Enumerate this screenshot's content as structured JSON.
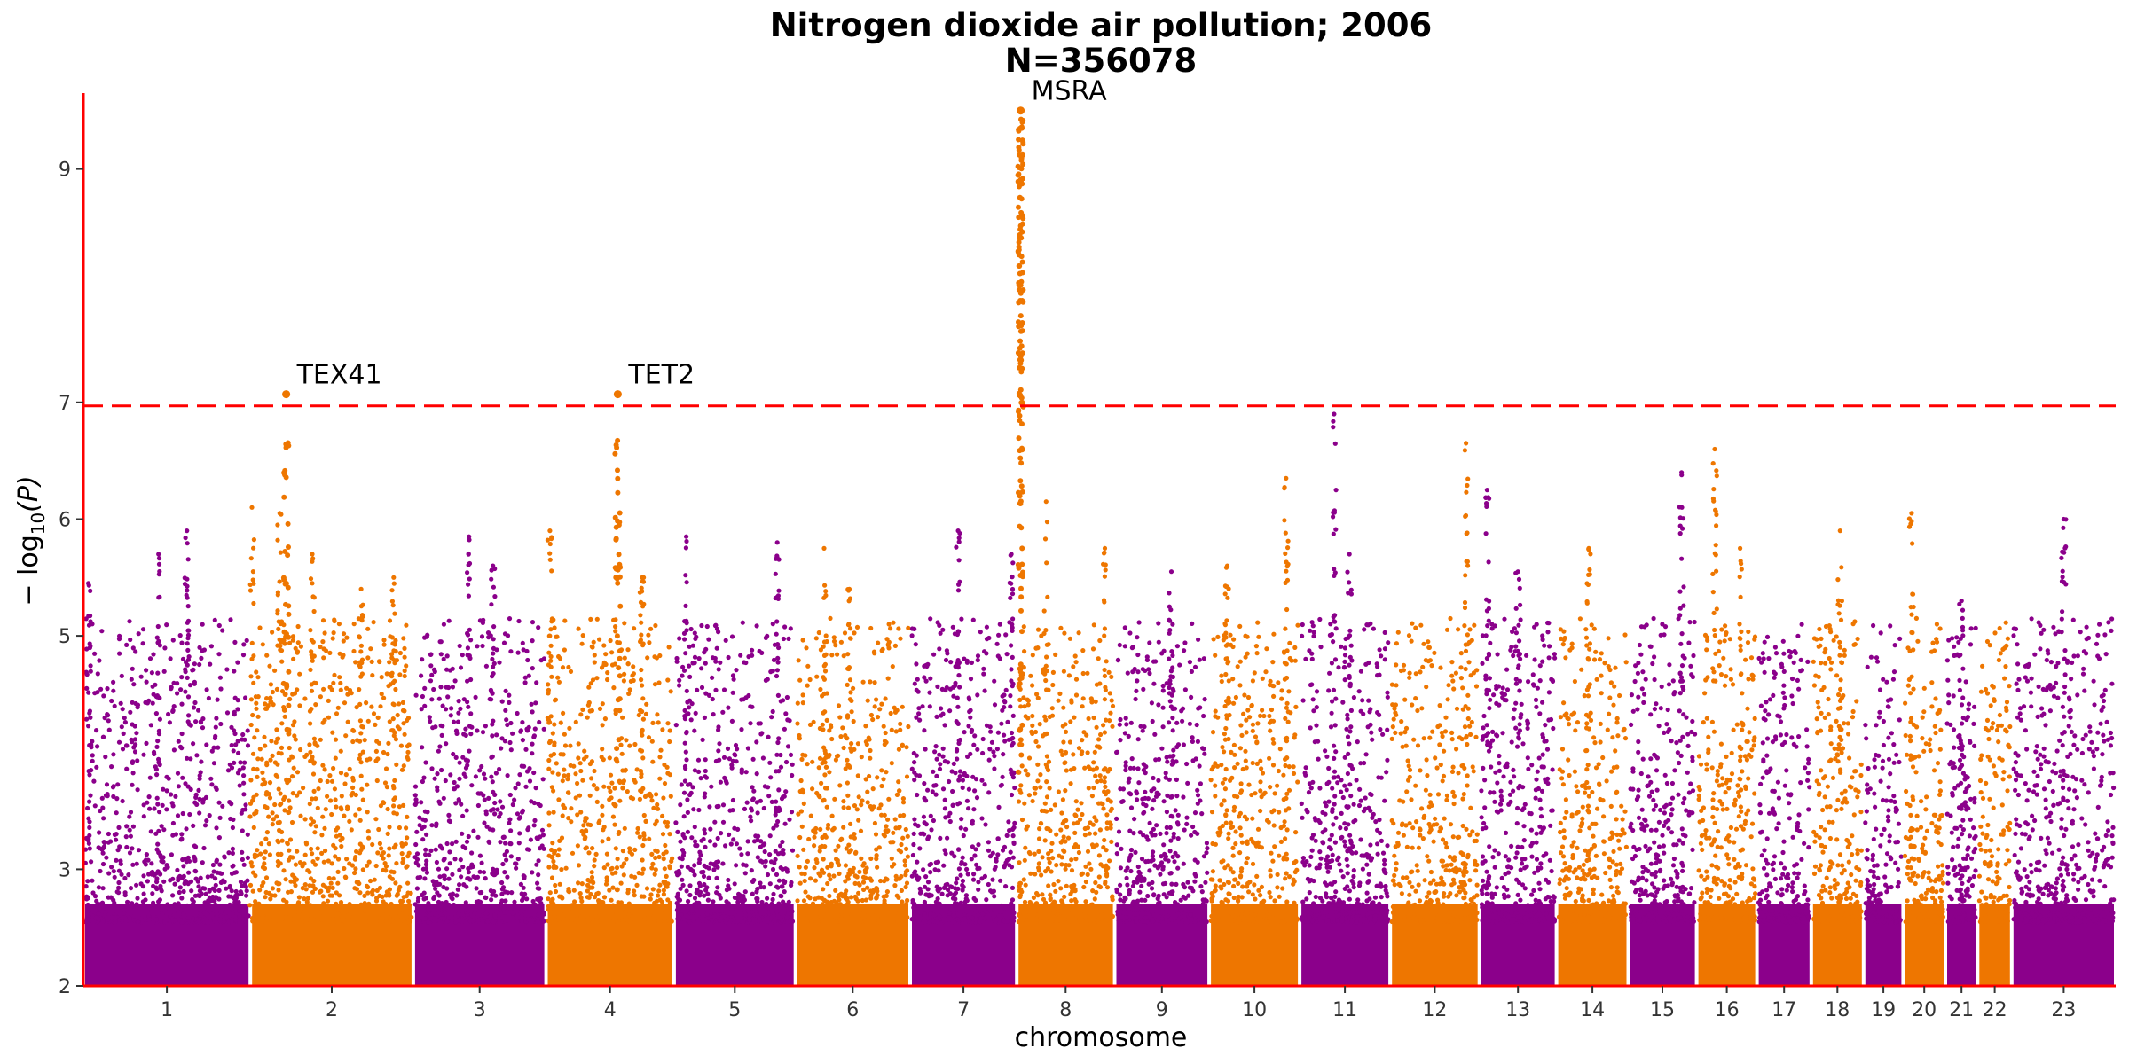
{
  "chart_data": {
    "type": "scatter",
    "title": "Nitrogen dioxide air pollution; 2006",
    "subtitle": "N=356078",
    "xlabel": "chromosome",
    "ylabel_base": "− log",
    "ylabel_sub": "10",
    "ylabel_tail": "(P)",
    "ylim": [
      2,
      9.65
    ],
    "yticks": [
      "2",
      "3",
      "5",
      "6",
      "7",
      "9"
    ],
    "grid": false,
    "colors": {
      "odd": "#8b008b",
      "even": "#ee7600",
      "threshold": "#ff0000",
      "axis": "#ff0000"
    },
    "threshold": 6.97,
    "chromosomes": [
      {
        "label": "1",
        "length": 249
      },
      {
        "label": "2",
        "length": 243
      },
      {
        "label": "3",
        "length": 198
      },
      {
        "label": "4",
        "length": 191
      },
      {
        "label": "5",
        "length": 181
      },
      {
        "label": "6",
        "length": 171
      },
      {
        "label": "7",
        "length": 159
      },
      {
        "label": "8",
        "length": 146
      },
      {
        "label": "9",
        "length": 141
      },
      {
        "label": "10",
        "length": 135
      },
      {
        "label": "11",
        "length": 135
      },
      {
        "label": "12",
        "length": 133
      },
      {
        "label": "13",
        "length": 115
      },
      {
        "label": "14",
        "length": 107
      },
      {
        "label": "15",
        "length": 102
      },
      {
        "label": "16",
        "length": 90
      },
      {
        "label": "17",
        "length": 81
      },
      {
        "label": "18",
        "length": 78
      },
      {
        "label": "19",
        "length": 59
      },
      {
        "label": "20",
        "length": 63
      },
      {
        "label": "21",
        "length": 48
      },
      {
        "label": "22",
        "length": 51
      },
      {
        "label": "23",
        "length": 155
      }
    ],
    "peaks": [
      {
        "chrom": "1",
        "pos": 0.03,
        "max": 5.45
      },
      {
        "chrom": "1",
        "pos": 0.45,
        "max": 5.7
      },
      {
        "chrom": "1",
        "pos": 0.62,
        "max": 5.9
      },
      {
        "chrom": "2",
        "pos": 0.01,
        "max": 6.1
      },
      {
        "chrom": "2",
        "pos": 0.18,
        "max": 6.05
      },
      {
        "chrom": "2",
        "pos": 0.38,
        "max": 5.7
      },
      {
        "chrom": "2",
        "pos": 0.68,
        "max": 5.4
      },
      {
        "chrom": "2",
        "pos": 0.88,
        "max": 5.5
      },
      {
        "chrom": "3",
        "pos": 0.42,
        "max": 5.85
      },
      {
        "chrom": "3",
        "pos": 0.6,
        "max": 5.6
      },
      {
        "chrom": "4",
        "pos": 0.03,
        "max": 5.9
      },
      {
        "chrom": "4",
        "pos": 0.75,
        "max": 5.5
      },
      {
        "chrom": "5",
        "pos": 0.1,
        "max": 5.85
      },
      {
        "chrom": "5",
        "pos": 0.85,
        "max": 5.8
      },
      {
        "chrom": "6",
        "pos": 0.25,
        "max": 5.75
      },
      {
        "chrom": "6",
        "pos": 0.47,
        "max": 5.4
      },
      {
        "chrom": "7",
        "pos": 0.45,
        "max": 5.9
      },
      {
        "chrom": "7",
        "pos": 0.95,
        "max": 5.7
      },
      {
        "chrom": "8",
        "pos": 0.3,
        "max": 6.15
      },
      {
        "chrom": "8",
        "pos": 0.9,
        "max": 5.75
      },
      {
        "chrom": "9",
        "pos": 0.6,
        "max": 5.55
      },
      {
        "chrom": "10",
        "pos": 0.2,
        "max": 5.6
      },
      {
        "chrom": "10",
        "pos": 0.85,
        "max": 6.35
      },
      {
        "chrom": "11",
        "pos": 0.38,
        "max": 6.9
      },
      {
        "chrom": "11",
        "pos": 0.55,
        "max": 5.7
      },
      {
        "chrom": "12",
        "pos": 0.85,
        "max": 6.65
      },
      {
        "chrom": "13",
        "pos": 0.1,
        "max": 6.25
      },
      {
        "chrom": "13",
        "pos": 0.5,
        "max": 5.55
      },
      {
        "chrom": "14",
        "pos": 0.45,
        "max": 5.75
      },
      {
        "chrom": "15",
        "pos": 0.78,
        "max": 6.4
      },
      {
        "chrom": "16",
        "pos": 0.3,
        "max": 6.6
      },
      {
        "chrom": "16",
        "pos": 0.72,
        "max": 5.75
      },
      {
        "chrom": "18",
        "pos": 0.55,
        "max": 5.9
      },
      {
        "chrom": "20",
        "pos": 0.2,
        "max": 6.05
      },
      {
        "chrom": "21",
        "pos": 0.5,
        "max": 5.3
      },
      {
        "chrom": "23",
        "pos": 0.5,
        "max": 6.0
      }
    ],
    "annotations": [
      {
        "label": "TEX41",
        "chrom": "2",
        "pos": 0.22,
        "value": 7.07
      },
      {
        "label": "TET2",
        "chrom": "4",
        "pos": 0.56,
        "value": 7.07
      },
      {
        "label": "MSRA",
        "chrom": "8",
        "pos": 0.04,
        "value": 9.5
      }
    ]
  }
}
